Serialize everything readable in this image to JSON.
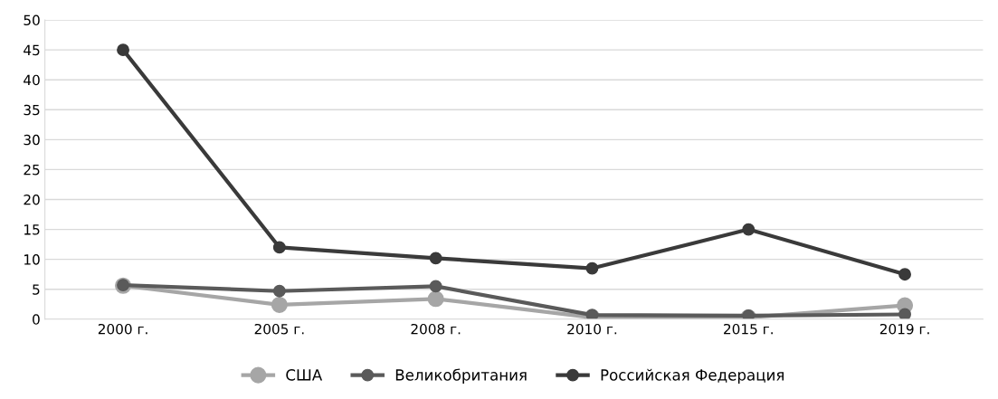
{
  "chart_data": {
    "type": "line",
    "categories": [
      "2000 г.",
      "2005 г.",
      "2008 г.",
      "2010 г.",
      "2015 г.",
      "2019 г."
    ],
    "series": [
      {
        "name": "США",
        "color": "#a6a6a6",
        "values": [
          5.6,
          2.4,
          3.4,
          0.3,
          0.3,
          2.3
        ]
      },
      {
        "name": "Великобритания",
        "color": "#5a5a5a",
        "values": [
          5.7,
          4.7,
          5.5,
          0.7,
          0.6,
          0.8
        ]
      },
      {
        "name": "Российская Федерация",
        "color": "#3a3a3a",
        "values": [
          45,
          12,
          10.2,
          8.5,
          15,
          7.5
        ]
      }
    ],
    "ylim": [
      0,
      50
    ],
    "yticks": [
      0,
      5,
      10,
      15,
      20,
      25,
      30,
      35,
      40,
      45,
      50
    ],
    "grid": "y",
    "legend": "bottom",
    "marker": "circle",
    "line_style": "solid"
  }
}
